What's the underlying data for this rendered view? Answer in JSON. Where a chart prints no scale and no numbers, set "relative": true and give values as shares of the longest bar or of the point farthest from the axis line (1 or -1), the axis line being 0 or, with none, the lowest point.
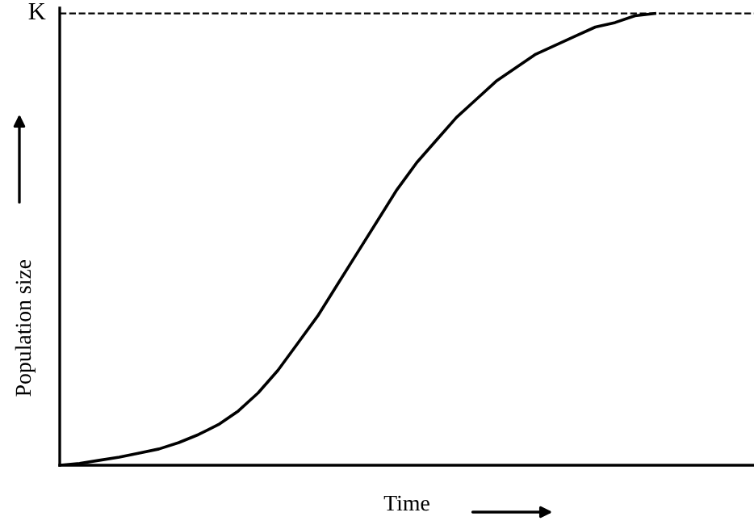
{
  "chart_data": {
    "type": "line",
    "relative": true,
    "xlabel": "Time",
    "ylabel": "Population size",
    "categories": [
      null,
      null,
      null,
      null,
      null,
      null,
      null,
      null,
      null,
      null,
      null,
      null,
      null,
      null,
      null,
      null,
      null,
      null,
      null,
      null,
      null,
      null,
      null,
      null,
      null,
      null,
      null,
      null,
      null,
      null,
      null,
      null,
      null,
      null,
      null,
      null
    ],
    "series": [
      {
        "color": "#000000",
        "values": [
          0,
          0.004,
          0.011,
          0.018,
          0.027,
          0.036,
          0.05,
          0.068,
          0.09,
          0.12,
          0.16,
          0.21,
          0.27,
          0.33,
          0.4,
          0.47,
          0.54,
          0.61,
          0.67,
          0.72,
          0.77,
          0.81,
          0.85,
          0.88,
          0.91,
          0.93,
          0.95,
          0.97,
          0.98,
          0.995,
          1,
          null,
          null,
          null,
          null,
          null
        ]
      }
    ],
    "ref_lines": [
      {
        "axis": "y",
        "value": 1,
        "label": "K",
        "color": "#000000",
        "line_style": "dashed"
      }
    ],
    "legend": false,
    "marker": "none",
    "line_style": "solid"
  }
}
